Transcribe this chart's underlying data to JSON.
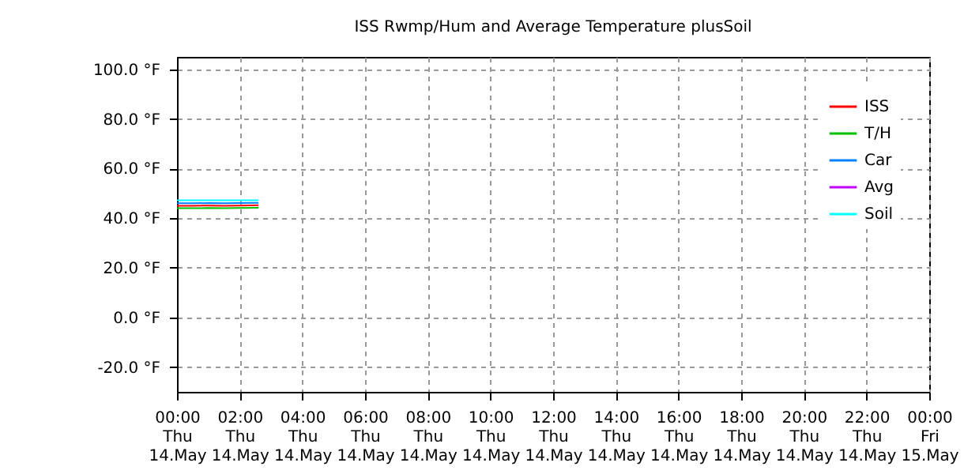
{
  "chart_data": {
    "type": "line",
    "title": "ISS Rwmp/Hum and Average Temperature plusSoil",
    "x": [
      "--05-14T00:00",
      "--05-14T00:30",
      "--05-14T01:00",
      "--05-14T01:30",
      "--05-14T02:00",
      "--05-14T02:36"
    ],
    "series": [
      {
        "name": "ISS",
        "color": "#ff0000",
        "values": [
          45.0,
          45.0,
          45.1,
          45.0,
          45.1,
          45.2
        ]
      },
      {
        "name": "T/H",
        "color": "#00c000",
        "values": [
          44.0,
          44.0,
          44.1,
          44.0,
          44.1,
          44.2
        ]
      },
      {
        "name": "Car",
        "color": "#0080ff",
        "values": [
          46.0,
          46.0,
          46.1,
          46.0,
          46.1,
          46.2
        ]
      },
      {
        "name": "Avg",
        "color": "#c000ff",
        "values": [
          null,
          null,
          null,
          null,
          null,
          null
        ]
      },
      {
        "name": "Soil",
        "color": "#00ffff",
        "values": [
          47.2,
          47.2,
          47.2,
          47.2,
          47.2,
          47.2
        ]
      }
    ],
    "xlim": [
      "--05-14T00:00",
      "--05-15T00:00"
    ],
    "xticks": [
      {
        "value": "--05-14T00:00",
        "label": "00:00\nThu\n14.May"
      },
      {
        "value": "--05-14T02:00",
        "label": "02:00\nThu\n14.May"
      },
      {
        "value": "--05-14T04:00",
        "label": "04:00\nThu\n14.May"
      },
      {
        "value": "--05-14T06:00",
        "label": "06:00\nThu\n14.May"
      },
      {
        "value": "--05-14T08:00",
        "label": "08:00\nThu\n14.May"
      },
      {
        "value": "--05-14T10:00",
        "label": "10:00\nThu\n14.May"
      },
      {
        "value": "--05-14T12:00",
        "label": "12:00\nThu\n14.May"
      },
      {
        "value": "--05-14T14:00",
        "label": "14:00\nThu\n14.May"
      },
      {
        "value": "--05-14T16:00",
        "label": "16:00\nThu\n14.May"
      },
      {
        "value": "--05-14T18:00",
        "label": "18:00\nThu\n14.May"
      },
      {
        "value": "--05-14T20:00",
        "label": "20:00\nThu\n14.May"
      },
      {
        "value": "--05-14T22:00",
        "label": "22:00\nThu\n14.May"
      },
      {
        "value": "--05-15T00:00",
        "label": "00:00\nFri\n15.May"
      }
    ],
    "ylim": [
      -30,
      105
    ],
    "yticks": [
      {
        "value": -20,
        "label": "-20.0 °F"
      },
      {
        "value": 0,
        "label": "0.0 °F"
      },
      {
        "value": 20,
        "label": "20.0 °F"
      },
      {
        "value": 40,
        "label": "40.0 °F"
      },
      {
        "value": 60,
        "label": "60.0 °F"
      },
      {
        "value": 80,
        "label": "80.0 °F"
      },
      {
        "value": 100,
        "label": "100.0 °F"
      }
    ],
    "grid": true,
    "legend": "top right",
    "marker": "none",
    "line_style": "solid"
  }
}
